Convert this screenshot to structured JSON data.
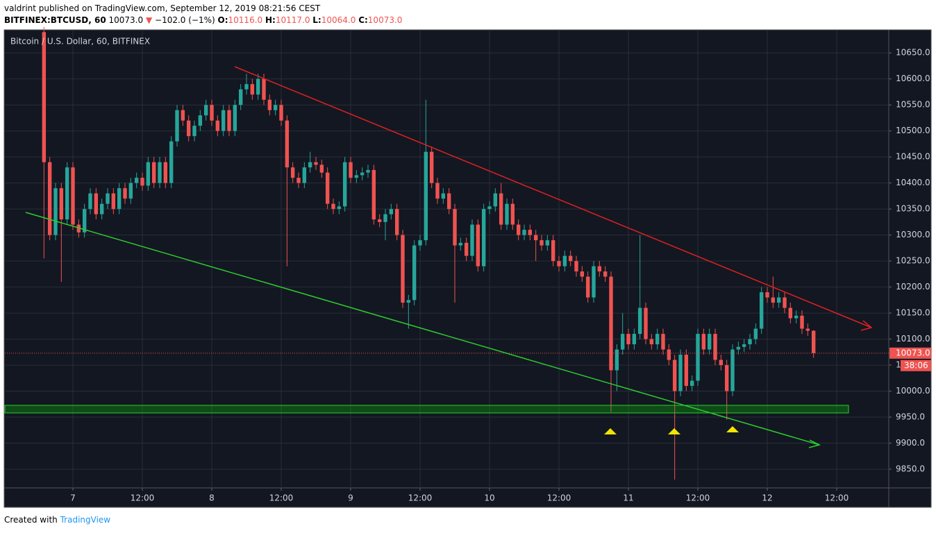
{
  "header": {
    "byline": "valdrint published on TradingView.com, September 12, 2019 08:21:56 CEST",
    "symbol": "BITFINEX:BTCUSD, 60",
    "last": "10073.0",
    "arrow": "▼",
    "change": "−102.0 (−1%)",
    "ohlc": [
      {
        "key": "O:",
        "val": "10116.0"
      },
      {
        "key": "H:",
        "val": "10117.0"
      },
      {
        "key": "L:",
        "val": "10064.0"
      },
      {
        "key": "C:",
        "val": "10073.0"
      }
    ]
  },
  "footer": {
    "created": "Created with",
    "brand": "TradingView"
  },
  "chart_data": {
    "type": "candlestick",
    "title": "Bitcoin / U.S. Dollar, 60, BITFINEX",
    "up_color": "#26a69a",
    "down_color": "#ef5350",
    "grid": true,
    "xlim": [
      -11.76,
      141
    ],
    "ylim": [
      9814,
      10693
    ],
    "xticks": [
      {
        "value": 0,
        "label": "7"
      },
      {
        "value": 12,
        "label": "12:00"
      },
      {
        "value": 24,
        "label": "8"
      },
      {
        "value": 36,
        "label": "12:00"
      },
      {
        "value": 48,
        "label": "9"
      },
      {
        "value": 60,
        "label": "12:00"
      },
      {
        "value": 72,
        "label": "10"
      },
      {
        "value": 84,
        "label": "12:00"
      },
      {
        "value": 96,
        "label": "11"
      },
      {
        "value": 108,
        "label": "12:00"
      },
      {
        "value": 120,
        "label": "12"
      },
      {
        "value": 132,
        "label": "12:00"
      }
    ],
    "yticks": [
      {
        "value": 9850,
        "label": "9850.0"
      },
      {
        "value": 9900,
        "label": "9900.0"
      },
      {
        "value": 9950,
        "label": "9950.0"
      },
      {
        "value": 10000,
        "label": "10000.0"
      },
      {
        "value": 10050,
        "label": "10050.0"
      },
      {
        "value": 10100,
        "label": "10100.0"
      },
      {
        "value": 10150,
        "label": "10150.0"
      },
      {
        "value": 10200,
        "label": "10200.0"
      },
      {
        "value": 10250,
        "label": "10250.0"
      },
      {
        "value": 10300,
        "label": "10300.0"
      },
      {
        "value": 10350,
        "label": "10350.0"
      },
      {
        "value": 10400,
        "label": "10400.0"
      },
      {
        "value": 10450,
        "label": "10450.0"
      },
      {
        "value": 10500,
        "label": "10500.0"
      },
      {
        "value": 10550,
        "label": "10550.0"
      },
      {
        "value": 10600,
        "label": "10600.0"
      },
      {
        "value": 10650,
        "label": "10650.0"
      }
    ],
    "last_price": {
      "value": 10073,
      "label": "10073.0"
    },
    "countdown": "38:06",
    "x": [
      -5,
      -4,
      -3,
      -2,
      -1,
      0,
      1,
      2,
      3,
      4,
      5,
      6,
      7,
      8,
      9,
      10,
      11,
      12,
      13,
      14,
      15,
      16,
      17,
      18,
      19,
      20,
      21,
      22,
      23,
      24,
      25,
      26,
      27,
      28,
      29,
      30,
      31,
      32,
      33,
      34,
      35,
      36,
      37,
      38,
      39,
      40,
      41,
      42,
      43,
      44,
      45,
      46,
      47,
      48,
      49,
      50,
      51,
      52,
      53,
      54,
      55,
      56,
      57,
      58,
      59,
      60,
      61,
      62,
      63,
      64,
      65,
      66,
      67,
      68,
      69,
      70,
      71,
      72,
      73,
      74,
      75,
      76,
      77,
      78,
      79,
      80,
      81,
      82,
      83,
      84,
      85,
      86,
      87,
      88,
      89,
      90,
      91,
      92,
      93,
      94,
      95,
      96,
      97,
      98,
      99,
      100,
      101,
      102,
      103,
      104,
      105,
      106,
      107,
      108,
      109,
      110,
      111,
      112,
      113,
      114,
      115,
      116,
      117,
      118,
      119,
      120,
      121,
      122,
      123,
      124,
      125,
      126,
      127,
      128
    ],
    "open": [
      10690,
      10440,
      10300,
      10390,
      10330,
      10430,
      10320,
      10305,
      10350,
      10380,
      10340,
      10360,
      10380,
      10350,
      10390,
      10370,
      10400,
      10410,
      10395,
      10440,
      10400,
      10440,
      10400,
      10480,
      10540,
      10520,
      10490,
      10510,
      10530,
      10550,
      10520,
      10500,
      10540,
      10500,
      10550,
      10580,
      10590,
      10570,
      10600,
      10560,
      10540,
      10550,
      10520,
      10430,
      10410,
      10400,
      10430,
      10440,
      10435,
      10420,
      10360,
      10350,
      10355,
      10440,
      10410,
      10415,
      10420,
      10425,
      10330,
      10325,
      10340,
      10350,
      10300,
      10170,
      10175,
      10280,
      10290,
      10460,
      10400,
      10370,
      10380,
      10350,
      10280,
      10285,
      10260,
      10320,
      10240,
      10350,
      10355,
      10380,
      10320,
      10360,
      10320,
      10300,
      10310,
      10300,
      10290,
      10280,
      10290,
      10250,
      10240,
      10260,
      10250,
      10230,
      10220,
      10180,
      10240,
      10230,
      10220,
      10040,
      10080,
      10110,
      10090,
      10110,
      10160,
      10100,
      10090,
      10110,
      10080,
      10060,
      10000,
      10070,
      10010,
      10020,
      10110,
      10080,
      10110,
      10060,
      10050,
      10000,
      10080,
      10085,
      10090,
      10100,
      10120,
      10190,
      10180,
      10170,
      10180,
      10160,
      10140,
      10145,
      10120,
      10116
    ],
    "high": [
      10700,
      10450,
      10400,
      10400,
      10440,
      10440,
      10330,
      10360,
      10390,
      10390,
      10370,
      10390,
      10390,
      10400,
      10400,
      10410,
      10420,
      10420,
      10450,
      10450,
      10450,
      10450,
      10490,
      10550,
      10550,
      10530,
      10520,
      10540,
      10560,
      10560,
      10530,
      10550,
      10550,
      10560,
      10590,
      10610,
      10600,
      10610,
      10610,
      10570,
      10560,
      10560,
      10530,
      10440,
      10420,
      10440,
      10460,
      10450,
      10445,
      10430,
      10370,
      10365,
      10450,
      10450,
      10425,
      10430,
      10435,
      10435,
      10340,
      10350,
      10360,
      10360,
      10310,
      10185,
      10290,
      10300,
      10560,
      10470,
      10410,
      10390,
      10390,
      10360,
      10295,
      10295,
      10330,
      10330,
      10360,
      10365,
      10390,
      10400,
      10370,
      10370,
      10330,
      10320,
      10320,
      10310,
      10300,
      10300,
      10300,
      10260,
      10270,
      10270,
      10260,
      10240,
      10230,
      10250,
      10250,
      10240,
      10230,
      10090,
      10150,
      10120,
      10120,
      10300,
      10170,
      10110,
      10120,
      10120,
      10090,
      10070,
      10080,
      10080,
      10030,
      10120,
      10120,
      10120,
      10120,
      10070,
      10060,
      10090,
      10095,
      10100,
      10110,
      10130,
      10200,
      10200,
      10220,
      10190,
      10190,
      10170,
      10155,
      10155,
      10130,
      10117
    ],
    "low": [
      10255,
      10290,
      10290,
      10210,
      10320,
      10310,
      10295,
      10295,
      10340,
      10330,
      10330,
      10350,
      10340,
      10340,
      10360,
      10360,
      10390,
      10385,
      10385,
      10390,
      10390,
      10390,
      10390,
      10470,
      10510,
      10480,
      10480,
      10500,
      10520,
      10510,
      10490,
      10490,
      10490,
      10490,
      10540,
      10570,
      10560,
      10560,
      10550,
      10530,
      10530,
      10510,
      10240,
      10400,
      10390,
      10390,
      10420,
      10425,
      10410,
      10350,
      10340,
      10340,
      10345,
      10400,
      10400,
      10405,
      10410,
      10320,
      10315,
      10290,
      10330,
      10290,
      10160,
      10120,
      10165,
      10270,
      10280,
      10390,
      10360,
      10360,
      10340,
      10170,
      10270,
      10250,
      10250,
      10230,
      10230,
      10340,
      10345,
      10310,
      10310,
      10310,
      10290,
      10290,
      10290,
      10250,
      10270,
      10270,
      10240,
      10230,
      10230,
      10240,
      10220,
      10210,
      10170,
      10170,
      10220,
      10210,
      9960,
      10000,
      10070,
      10080,
      10080,
      10100,
      10090,
      10080,
      10080,
      10070,
      10050,
      9830,
      9990,
      10000,
      10000,
      10010,
      10070,
      10070,
      10050,
      10040,
      9945,
      9990,
      10070,
      10075,
      10080,
      10090,
      10110,
      10170,
      10160,
      10160,
      10150,
      10130,
      10130,
      10110,
      10106,
      10064
    ],
    "close": [
      10440,
      10300,
      10390,
      10330,
      10430,
      10320,
      10305,
      10350,
      10380,
      10340,
      10360,
      10380,
      10350,
      10390,
      10370,
      10400,
      10410,
      10395,
      10440,
      10400,
      10440,
      10400,
      10480,
      10540,
      10520,
      10490,
      10510,
      10530,
      10550,
      10520,
      10500,
      10540,
      10500,
      10550,
      10580,
      10590,
      10570,
      10600,
      10560,
      10540,
      10550,
      10520,
      10430,
      10410,
      10400,
      10430,
      10440,
      10435,
      10420,
      10360,
      10350,
      10355,
      10440,
      10410,
      10415,
      10420,
      10425,
      10330,
      10325,
      10340,
      10350,
      10300,
      10170,
      10175,
      10280,
      10290,
      10460,
      10400,
      10370,
      10380,
      10350,
      10280,
      10285,
      10260,
      10320,
      10240,
      10350,
      10355,
      10380,
      10320,
      10360,
      10320,
      10300,
      10310,
      10300,
      10290,
      10280,
      10290,
      10250,
      10240,
      10260,
      10250,
      10230,
      10220,
      10180,
      10240,
      10230,
      10220,
      10040,
      10080,
      10110,
      10090,
      10110,
      10160,
      10100,
      10090,
      10110,
      10080,
      10060,
      10000,
      10070,
      10010,
      10020,
      10110,
      10080,
      10110,
      10060,
      10050,
      10000,
      10080,
      10085,
      10090,
      10100,
      10120,
      10190,
      10180,
      10170,
      10180,
      10160,
      10140,
      10145,
      10120,
      10116,
      10073
    ]
  }
}
